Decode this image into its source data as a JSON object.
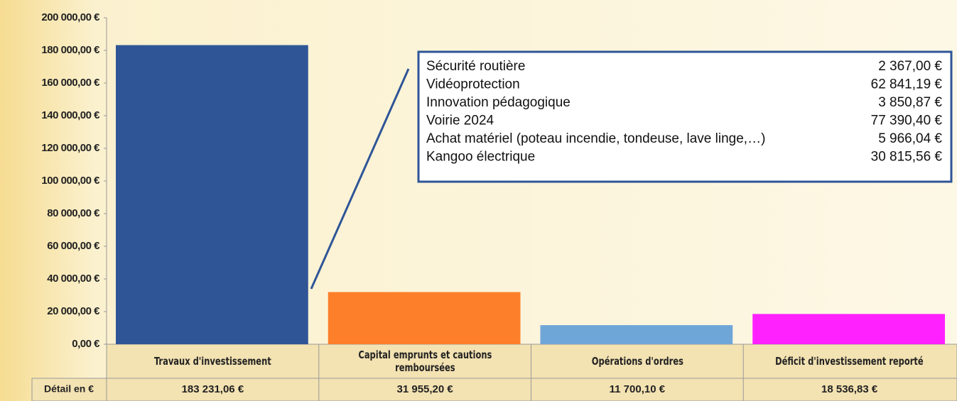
{
  "chart_data": {
    "type": "bar",
    "categories": [
      "Travaux d'investissement",
      "Capital emprunts et cautions remboursées",
      "Opérations d'ordres",
      "Déficit d'investissement reporté"
    ],
    "values": [
      183231.06,
      31955.2,
      11700.1,
      18536.83
    ],
    "value_labels": [
      "183 231,06 €",
      "31 955,20 €",
      "11 700,10 €",
      "18 536,83 €"
    ],
    "colors": [
      "#2f5597",
      "#fd7f2a",
      "#6fa6d8",
      "#ff22ff"
    ],
    "table_row_label": "Détail en €",
    "ylim": [
      0,
      200000
    ],
    "yticks": [
      {
        "value": 0,
        "label": "0,00 €"
      },
      {
        "value": 20000,
        "label": "20 000,00 €"
      },
      {
        "value": 40000,
        "label": "40 000,00 €"
      },
      {
        "value": 60000,
        "label": "60 000,00 €"
      },
      {
        "value": 80000,
        "label": "80 000,00 €"
      },
      {
        "value": 100000,
        "label": "100 000,00 €"
      },
      {
        "value": 120000,
        "label": "120 000,00 €"
      },
      {
        "value": 140000,
        "label": "140 000,00 €"
      },
      {
        "value": 160000,
        "label": "160 000,00 €"
      },
      {
        "value": 180000,
        "label": "180 000,00 €"
      },
      {
        "value": 200000,
        "label": "200 000,00 €"
      }
    ],
    "grid": false,
    "annotation": {
      "rows": [
        [
          "Sécurité routière",
          "2 367,00 €"
        ],
        [
          "Vidéoprotection",
          "62 841,19 €"
        ],
        [
          "Innovation pédagogique",
          "3 850,87 €"
        ],
        [
          "Voirie 2024",
          "77 390,40 €"
        ],
        [
          "Achat matériel (poteau incendie, tondeuse, lave linge,…)",
          "5 966,04 €"
        ],
        [
          "Kangoo électrique",
          "30 815,56 €"
        ]
      ]
    }
  }
}
